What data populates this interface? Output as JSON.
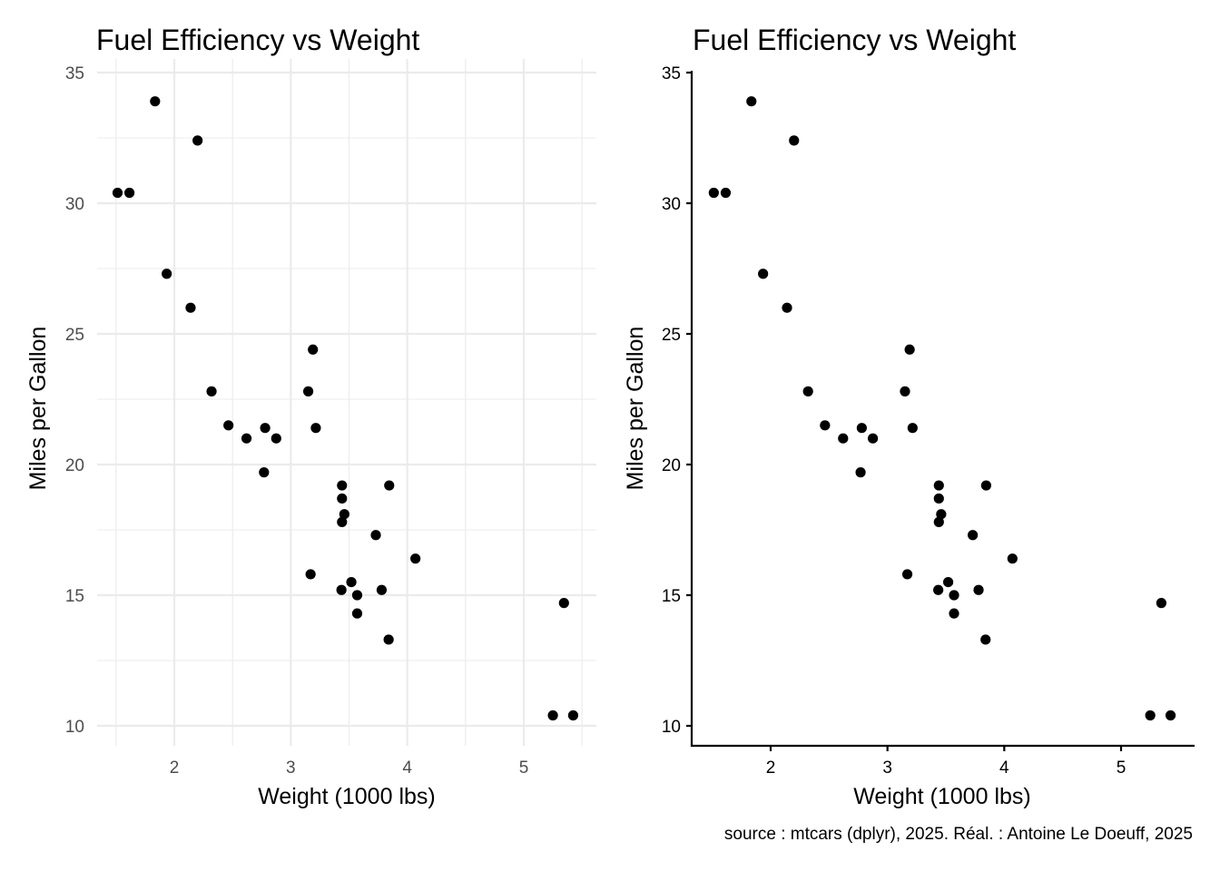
{
  "caption": "source : mtcars (dplyr), 2025. Réal. : Antoine Le Doeuff, 2025",
  "chart_data": [
    {
      "type": "scatter",
      "theme": "minimal (grey gridlines, no axis lines)",
      "title": "Fuel Efficiency vs Weight",
      "xlabel": "Weight (1000 lbs)",
      "ylabel": "Miles per Gallon",
      "xlim": [
        1.35,
        5.63
      ],
      "ylim": [
        9.2,
        35.5
      ],
      "xticks": [
        2,
        3,
        4,
        5
      ],
      "xtick_labels": [
        "2",
        "3",
        "4",
        "5"
      ],
      "yticks": [
        10,
        15,
        20,
        25,
        30,
        35
      ],
      "ytick_labels": [
        "10",
        "15",
        "20",
        "25",
        "30",
        "35"
      ],
      "grid": true,
      "x": [
        2.62,
        2.875,
        2.32,
        3.215,
        3.44,
        3.46,
        3.57,
        3.19,
        3.15,
        3.44,
        3.44,
        4.07,
        3.73,
        3.78,
        5.25,
        5.424,
        5.345,
        2.2,
        1.615,
        1.835,
        2.465,
        3.52,
        3.435,
        3.84,
        3.845,
        1.935,
        2.14,
        1.513,
        3.17,
        2.77,
        3.57,
        2.78
      ],
      "y": [
        21.0,
        21.0,
        22.8,
        21.4,
        18.7,
        18.1,
        14.3,
        24.4,
        22.8,
        19.2,
        17.8,
        16.4,
        17.3,
        15.2,
        10.4,
        10.4,
        14.7,
        32.4,
        30.4,
        33.9,
        21.5,
        15.5,
        15.2,
        13.3,
        19.2,
        27.3,
        26.0,
        30.4,
        15.8,
        19.7,
        15.0,
        21.4
      ]
    },
    {
      "type": "scatter",
      "theme": "classic (black axis lines, no gridlines)",
      "title": "Fuel Efficiency vs Weight",
      "xlabel": "Weight (1000 lbs)",
      "ylabel": "Miles per Gallon",
      "xlim": [
        1.35,
        5.63
      ],
      "ylim": [
        9.2,
        35.5
      ],
      "xticks": [
        2,
        3,
        4,
        5
      ],
      "xtick_labels": [
        "2",
        "3",
        "4",
        "5"
      ],
      "yticks": [
        10,
        15,
        20,
        25,
        30,
        35
      ],
      "ytick_labels": [
        "10",
        "15",
        "20",
        "25",
        "30",
        "35"
      ],
      "grid": false,
      "x": [
        2.62,
        2.875,
        2.32,
        3.215,
        3.44,
        3.46,
        3.57,
        3.19,
        3.15,
        3.44,
        3.44,
        4.07,
        3.73,
        3.78,
        5.25,
        5.424,
        5.345,
        2.2,
        1.615,
        1.835,
        2.465,
        3.52,
        3.435,
        3.84,
        3.845,
        1.935,
        2.14,
        1.513,
        3.17,
        2.77,
        3.57,
        2.78
      ],
      "y": [
        21.0,
        21.0,
        22.8,
        21.4,
        18.7,
        18.1,
        14.3,
        24.4,
        22.8,
        19.2,
        17.8,
        16.4,
        17.3,
        15.2,
        10.4,
        10.4,
        14.7,
        32.4,
        30.4,
        33.9,
        21.5,
        15.5,
        15.2,
        13.3,
        19.2,
        27.3,
        26.0,
        30.4,
        15.8,
        19.7,
        15.0,
        21.4
      ]
    }
  ]
}
